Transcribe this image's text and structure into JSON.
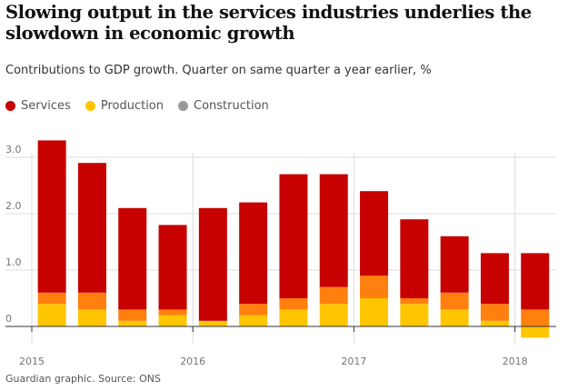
{
  "title": "Slowing output in the services industries underlies the slowdown in economic growth",
  "subtitle": "Contributions to GDP growth. Quarter on same quarter a year earlier, %",
  "source": "Guardian graphic. Source: ONS",
  "colors": {
    "services": "#c70000",
    "production": "#ffc500",
    "production_dark": "#ff7f0f",
    "construction": "#999999",
    "grid": "#dcdcdc",
    "axis": "#333333",
    "tick_text": "#767676"
  },
  "legend": [
    {
      "name": "Services",
      "color": "#c70000"
    },
    {
      "name": "Production",
      "color": "#ffc500"
    },
    {
      "name": "Construction",
      "color": "#999999"
    }
  ],
  "chart_data": {
    "type": "bar",
    "stacked": true,
    "categories": [
      "2015 Q1",
      "2015 Q2",
      "2015 Q3",
      "2015 Q4",
      "2016 Q1",
      "2016 Q2",
      "2016 Q3",
      "2016 Q4",
      "2017 Q1",
      "2017 Q2",
      "2017 Q3",
      "2017 Q4",
      "2018 Q1"
    ],
    "series": [
      {
        "name": "Production",
        "values": [
          0.4,
          0.3,
          0.1,
          0.2,
          0.1,
          0.2,
          0.3,
          0.4,
          0.5,
          0.4,
          0.3,
          0.1,
          -0.2
        ]
      },
      {
        "name": "Construction",
        "values": [
          0.2,
          0.3,
          0.2,
          0.1,
          0.0,
          0.2,
          0.2,
          0.3,
          0.4,
          0.1,
          0.3,
          0.3,
          0.3
        ]
      },
      {
        "name": "Services",
        "values": [
          2.7,
          2.3,
          1.8,
          1.5,
          2.0,
          1.8,
          2.2,
          2.0,
          1.5,
          1.4,
          1.0,
          0.9,
          1.0
        ]
      }
    ],
    "y_ticks": [
      0,
      1.0,
      2.0,
      3.0
    ],
    "y_tick_labels": [
      "0",
      "1.0",
      "2.0",
      "3.0"
    ],
    "x_ticks": [
      {
        "label": "2015",
        "pos": -0.5
      },
      {
        "label": "2016",
        "pos": 3.5
      },
      {
        "label": "2017",
        "pos": 7.5
      },
      {
        "label": "2018",
        "pos": 11.5
      }
    ],
    "ylim": [
      -0.3,
      3.4
    ],
    "grid": true,
    "legend_position": "top-left"
  }
}
